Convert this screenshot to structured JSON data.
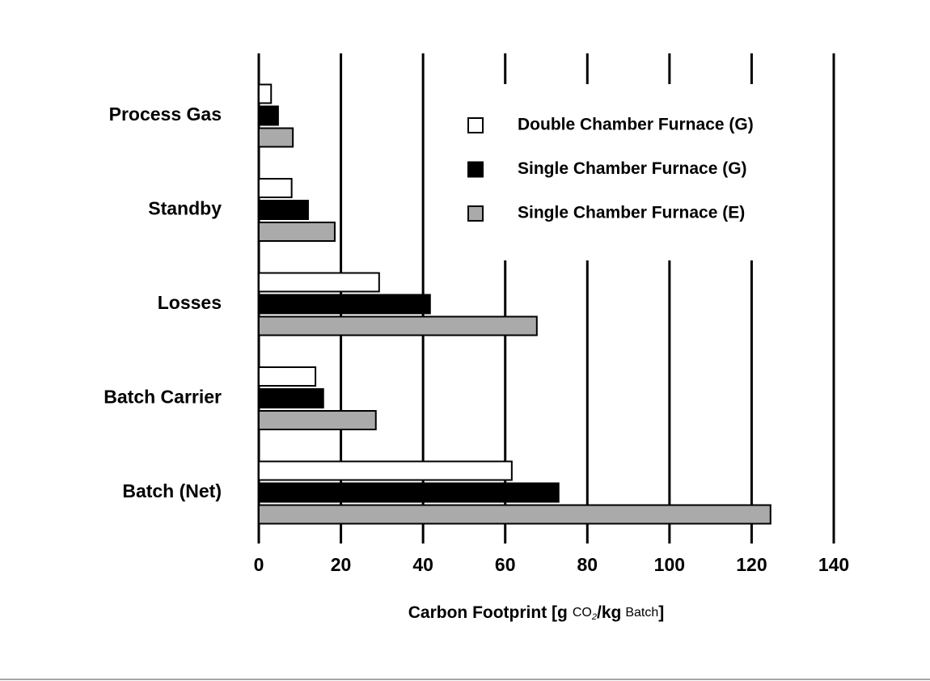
{
  "chart_data": {
    "type": "barh",
    "categories": [
      "Process Gas",
      "Standby",
      "Losses",
      "Batch Carrier",
      "Batch (Net)"
    ],
    "series": [
      {
        "name": "Double Chamber Furnace (G)",
        "color": "#ffffff",
        "values": [
          3,
          8,
          29.3,
          13.8,
          61.6
        ]
      },
      {
        "name": "Single Chamber Furnace (G)",
        "color": "#000000",
        "values": [
          4.7,
          12,
          41.7,
          15.7,
          73
        ]
      },
      {
        "name": "Single Chamber Furnace (E)",
        "color": "#aaaaaa",
        "values": [
          8.3,
          18.5,
          67.7,
          28.5,
          124.6
        ]
      }
    ],
    "xlabel": [
      "Carbon Footprint [g",
      "CO",
      "2",
      "/kg",
      "Batch",
      "]"
    ],
    "xlim": [
      0,
      140
    ],
    "xticks": [
      0,
      20,
      40,
      60,
      80,
      100,
      120,
      140
    ],
    "grid": true,
    "legend": "upper right"
  }
}
